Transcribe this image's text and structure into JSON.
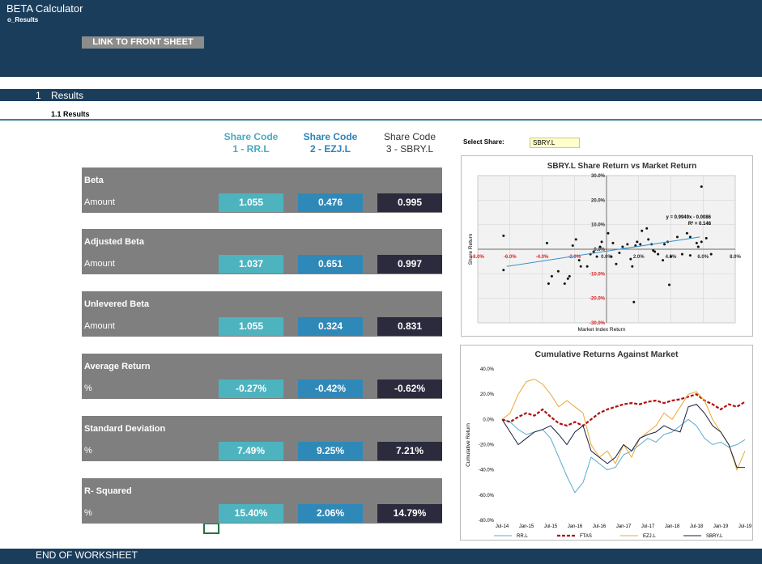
{
  "header": {
    "title": "BETA Calculator",
    "sheet": "o_Results",
    "button": "LINK TO FRONT SHEET"
  },
  "section": {
    "number": "1",
    "title": "Results",
    "subtitle": "1.1 Results"
  },
  "columns": [
    {
      "line1": "Share Code",
      "line2": "1 - RR.L",
      "color": "#4db3bf",
      "text_color": "#4aaac0"
    },
    {
      "line1": "Share Code",
      "line2": "2 - EZJ.L",
      "color": "#2f89b8",
      "text_color": "#2e82b8"
    },
    {
      "line1": "Share Code",
      "line2": "3 - SBRY.L",
      "color": "#2b2b3d",
      "text_color": "#333333"
    }
  ],
  "metrics": [
    {
      "title": "Beta",
      "row_label": "Amount",
      "values": [
        "1.055",
        "0.476",
        "0.995"
      ]
    },
    {
      "title": "Adjusted Beta",
      "row_label": "Amount",
      "values": [
        "1.037",
        "0.651",
        "0.997"
      ]
    },
    {
      "title": "Unlevered Beta",
      "row_label": "Amount",
      "values": [
        "1.055",
        "0.324",
        "0.831"
      ]
    },
    {
      "title": "Average Return",
      "row_label": "%",
      "values": [
        "-0.27%",
        "-0.42%",
        "-0.62%"
      ]
    },
    {
      "title": "Standard Deviation",
      "row_label": "%",
      "values": [
        "7.49%",
        "9.25%",
        "7.21%"
      ]
    },
    {
      "title": "R- Squared",
      "row_label": "%",
      "values": [
        "15.40%",
        "2.06%",
        "14.79%"
      ]
    }
  ],
  "select": {
    "label": "Select Share:",
    "value": "SBRY.L"
  },
  "footer": "END OF WORKSHEET",
  "chart_data": [
    {
      "type": "scatter",
      "title": "SBRY.L  Share Return vs Market Return",
      "xlabel": "Market Index Return",
      "ylabel": "Share Return",
      "color": "#111111",
      "negative_tick_color": "#e02020",
      "grid": true,
      "x": [
        -6.4,
        -6.4,
        -3.7,
        -3.6,
        -3.4,
        -3,
        -2.6,
        -2.4,
        -2.3,
        -2.1,
        -1.9,
        -1.7,
        -1.6,
        -1.2,
        -1,
        -0.8,
        -0.6,
        -0.4,
        -0.3,
        0.1,
        0.3,
        0.6,
        0.4,
        1,
        1.3,
        1.5,
        1.6,
        1.8,
        1.9,
        2.1,
        2.2,
        2.5,
        2.6,
        2.8,
        3,
        3.2,
        3.5,
        3.6,
        3.8,
        3.9,
        4,
        1.7,
        4.7,
        5.2,
        5.6,
        5.7,
        6.2,
        6.5,
        5.9,
        5.2,
        5.9,
        5,
        4.4,
        2.9,
        0.8
      ],
      "y": [
        5.5,
        -8.5,
        2.5,
        -14,
        -11,
        -9,
        -14,
        -12,
        -11,
        1.5,
        4,
        -4.5,
        -7,
        -7,
        -2,
        -1,
        -3,
        1,
        3,
        6.5,
        -3,
        -6,
        2.5,
        1,
        2,
        -4,
        -7,
        1.5,
        3,
        2,
        7.5,
        8.5,
        4,
        2,
        -1,
        -2,
        -4.5,
        2,
        3,
        -14.5,
        -3,
        -21.5,
        -2,
        -2.5,
        2.5,
        1,
        4.5,
        -2,
        3,
        5,
        25.5,
        6.5,
        5,
        -0.5,
        -1.5
      ],
      "trendline": {
        "x": [
          -6.2,
          5.8
        ],
        "y": [
          -7,
          5
        ],
        "color": "#3a8fc8"
      },
      "annotations": [
        "y = 0.9949x - 0.0086",
        "R² = 0.148"
      ],
      "xlim": [
        -8,
        8
      ],
      "xticks": [
        {
          "value": -8,
          "label": "-8.0%"
        },
        {
          "value": -6,
          "label": "-6.0%"
        },
        {
          "value": -4,
          "label": "-4.0%"
        },
        {
          "value": -2,
          "label": "-2.0%"
        },
        {
          "value": 0,
          "label": "0.0%"
        },
        {
          "value": 2,
          "label": "2.0%"
        },
        {
          "value": 4,
          "label": "4.0%"
        },
        {
          "value": 6,
          "label": "6.0%"
        },
        {
          "value": 8,
          "label": "8.0%"
        }
      ],
      "ylim": [
        -30,
        30
      ],
      "yticks": [
        {
          "value": 30,
          "label": "30.0%"
        },
        {
          "value": 20,
          "label": "20.0%"
        },
        {
          "value": 10,
          "label": "10.0%"
        },
        {
          "value": 0,
          "label": "0.0%"
        },
        {
          "value": -10,
          "label": "-10.0%"
        },
        {
          "value": -20,
          "label": "-20.0%"
        },
        {
          "value": -30,
          "label": "-30.0%"
        }
      ]
    },
    {
      "type": "line",
      "title": "Cumulative Returns Against Market",
      "ylabel": "Cumulative Return",
      "grid": false,
      "categories": [
        "Jul-14",
        null,
        null,
        "Jan-15",
        null,
        null,
        "Jul-15",
        null,
        null,
        "Jan-16",
        null,
        null,
        "Jul-16",
        null,
        null,
        "Jan-17",
        null,
        null,
        "Jul-17",
        null,
        null,
        "Jan-18",
        null,
        null,
        "Jul-18",
        null,
        null,
        "Jan-19",
        null,
        null,
        "Jul-19"
      ],
      "series": [
        {
          "name": "RR.L",
          "color": "#5aaccc",
          "style": "solid",
          "values": [
            0,
            -2,
            -8,
            -12,
            -10,
            -8,
            -15,
            -30,
            -45,
            -58,
            -50,
            -30,
            -35,
            -40,
            -38,
            -28,
            -25,
            -20,
            -15,
            -18,
            -12,
            -10,
            -5,
            0,
            -5,
            -15,
            -20,
            -18,
            -22,
            -20,
            -16
          ]
        },
        {
          "name": "FTAS",
          "color": "#b01010",
          "style": "dashed",
          "values": [
            0,
            -2,
            2,
            5,
            3,
            8,
            2,
            -3,
            -5,
            -2,
            -5,
            0,
            5,
            8,
            10,
            12,
            13,
            12,
            14,
            15,
            13,
            15,
            16,
            18,
            20,
            15,
            12,
            8,
            12,
            10,
            14
          ]
        },
        {
          "name": "EZJ.L",
          "color": "#e8a838",
          "style": "solid",
          "values": [
            0,
            5,
            20,
            30,
            32,
            28,
            20,
            10,
            15,
            10,
            5,
            -20,
            -30,
            -25,
            -35,
            -20,
            -30,
            -15,
            -10,
            -5,
            5,
            0,
            10,
            20,
            22,
            15,
            0,
            -10,
            -20,
            -40,
            -25
          ]
        },
        {
          "name": "SBRY.L",
          "color": "#1a2040",
          "style": "solid",
          "values": [
            0,
            -10,
            -20,
            -15,
            -10,
            -8,
            -5,
            -12,
            -20,
            -10,
            -5,
            -25,
            -30,
            -35,
            -30,
            -20,
            -25,
            -15,
            -12,
            -10,
            -5,
            -8,
            -10,
            10,
            12,
            5,
            -5,
            -10,
            -20,
            -38,
            -38
          ]
        }
      ],
      "ylim": [
        -80,
        40
      ],
      "yticks": [
        {
          "value": 40,
          "label": "40.0%"
        },
        {
          "value": 20,
          "label": "20.0%"
        },
        {
          "value": 0,
          "label": "0.0%"
        },
        {
          "value": -20,
          "label": "-20.0%"
        },
        {
          "value": -40,
          "label": "-40.0%"
        },
        {
          "value": -60,
          "label": "-60.0%"
        },
        {
          "value": -80,
          "label": "-80.0%"
        }
      ]
    }
  ]
}
